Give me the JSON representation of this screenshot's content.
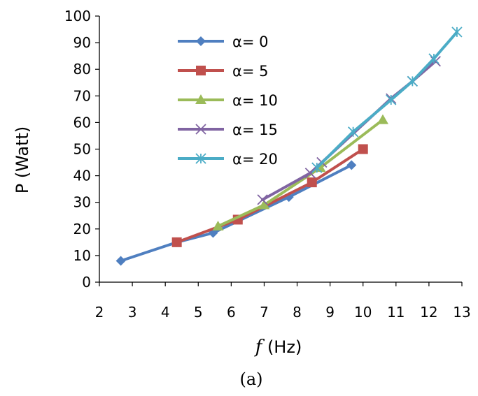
{
  "chart_data": {
    "type": "line",
    "xlabel_var": "f",
    "xlabel_unit": " (Hz)",
    "ylabel": "P (Watt)",
    "caption": "(a)",
    "xlim": [
      2,
      13
    ],
    "ylim": [
      0,
      100
    ],
    "xticks": [
      2,
      3,
      4,
      5,
      6,
      7,
      8,
      9,
      10,
      11,
      12,
      13
    ],
    "yticks": [
      0,
      10,
      20,
      30,
      40,
      50,
      60,
      70,
      80,
      90,
      100
    ],
    "grid": false,
    "legend_position": "top-left",
    "series": [
      {
        "name": "α= 0",
        "color": "#4F7FC0",
        "marker": "diamond",
        "points": [
          [
            2.65,
            8
          ],
          [
            4.35,
            15
          ],
          [
            5.45,
            18.5
          ],
          [
            7.75,
            32
          ],
          [
            9.65,
            44
          ]
        ]
      },
      {
        "name": "α= 5",
        "color": "#C0504D",
        "marker": "square",
        "points": [
          [
            4.35,
            15
          ],
          [
            6.2,
            23.5
          ],
          [
            8.45,
            37.5
          ],
          [
            10.0,
            50
          ]
        ]
      },
      {
        "name": "α= 10",
        "color": "#9BBB59",
        "marker": "triangle",
        "points": [
          [
            5.6,
            21
          ],
          [
            7.0,
            29
          ],
          [
            8.7,
            43
          ],
          [
            10.6,
            61
          ]
        ]
      },
      {
        "name": "α= 15",
        "color": "#8064A2",
        "marker": "x",
        "points": [
          [
            6.95,
            31
          ],
          [
            8.4,
            41
          ],
          [
            8.75,
            45
          ],
          [
            10.85,
            69
          ],
          [
            11.5,
            75.5
          ],
          [
            12.2,
            83
          ]
        ]
      },
      {
        "name": "α= 20",
        "color": "#4BACC6",
        "marker": "star",
        "points": [
          [
            8.6,
            43
          ],
          [
            9.7,
            56.5
          ],
          [
            10.85,
            68.5
          ],
          [
            11.5,
            75.5
          ],
          [
            12.15,
            84
          ],
          [
            12.85,
            94
          ]
        ]
      }
    ]
  }
}
